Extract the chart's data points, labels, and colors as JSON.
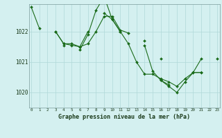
{
  "background_color": "#d4f0f0",
  "line_color": "#1a6b1a",
  "marker_color": "#1a6b1a",
  "grid_color": "#b0d8d8",
  "text_color": "#1a3a1a",
  "title": "Graphe pression niveau de la mer (hPa)",
  "xlabel_ticks": [
    0,
    1,
    2,
    3,
    4,
    5,
    6,
    7,
    8,
    9,
    10,
    11,
    12,
    13,
    14,
    15,
    16,
    17,
    18,
    19,
    20,
    21,
    22,
    23
  ],
  "yticks": [
    1020,
    1021,
    1022
  ],
  "ylim": [
    1019.5,
    1022.9
  ],
  "xlim": [
    -0.3,
    23.3
  ],
  "series": [
    [
      1022.8,
      1022.1,
      null,
      1022.0,
      1021.6,
      1021.6,
      1021.5,
      1022.0,
      null,
      1022.6,
      1022.4,
      1022.0,
      null,
      null,
      1021.7,
      null,
      1021.1,
      null,
      null,
      null,
      1020.65,
      1021.1,
      null,
      null
    ],
    [
      null,
      null,
      null,
      1022.0,
      1021.6,
      1021.55,
      1021.5,
      1021.6,
      1022.0,
      1022.5,
      1022.5,
      1022.05,
      1021.95,
      null,
      1021.55,
      1020.7,
      1020.4,
      1020.25,
      null,
      null,
      null,
      null,
      null,
      1021.1
    ],
    [
      null,
      null,
      null,
      null,
      1021.55,
      null,
      1021.4,
      1021.9,
      1022.7,
      1023.15,
      1022.4,
      1022.0,
      1021.6,
      1021.0,
      1020.6,
      1020.6,
      1020.45,
      1020.35,
      1020.2,
      1020.45,
      1020.65,
      1020.65,
      null,
      null
    ],
    [
      null,
      null,
      null,
      null,
      null,
      null,
      null,
      null,
      null,
      null,
      null,
      null,
      null,
      null,
      null,
      null,
      1020.4,
      1020.2,
      1020.0,
      1020.35,
      1020.65,
      1020.65,
      null,
      null
    ]
  ]
}
